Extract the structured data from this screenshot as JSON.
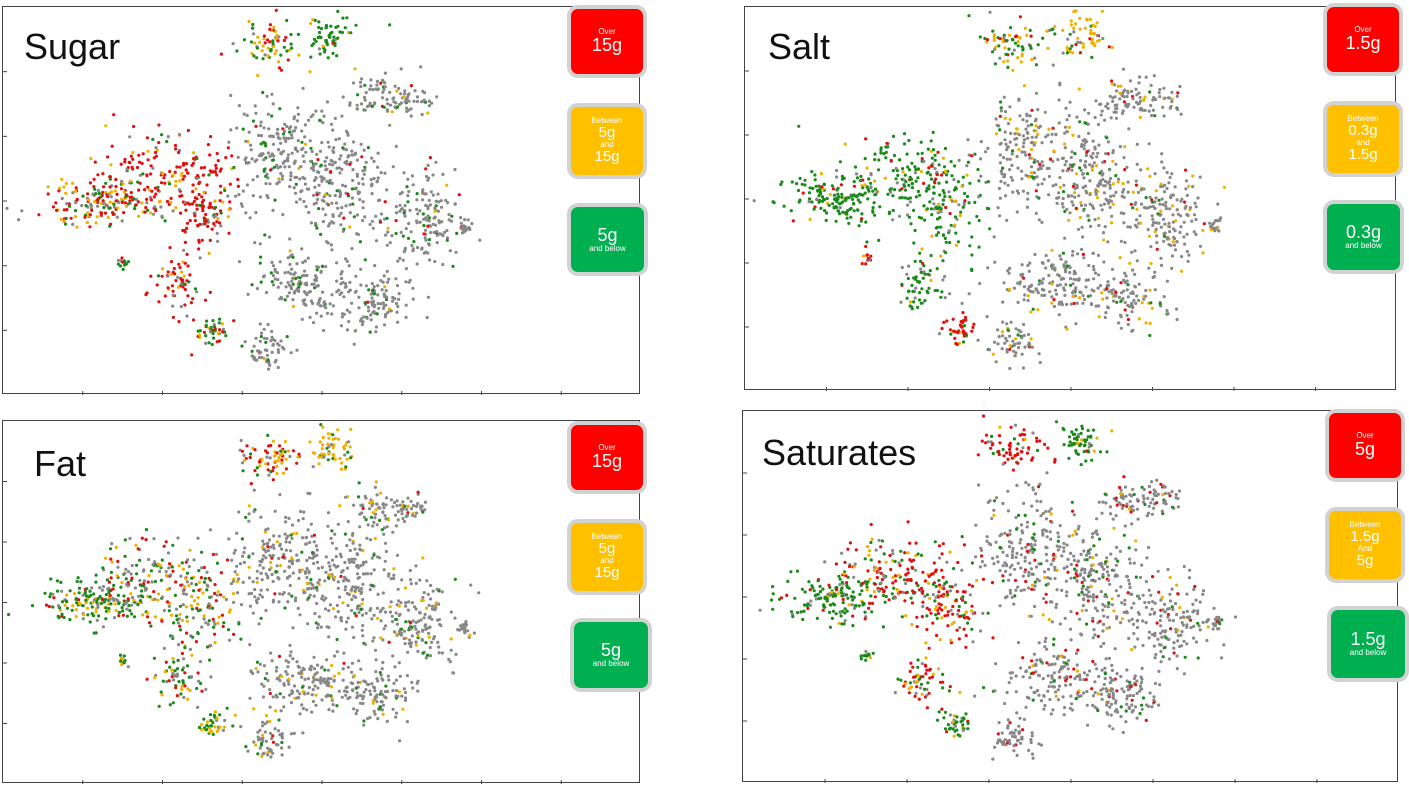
{
  "colors": {
    "red": "#ff0000",
    "amber": "#ffc000",
    "green": "#00b050",
    "dot_gray": "#888888",
    "dot_green": "#1a8a1a",
    "dot_red": "#e01010",
    "dot_amber": "#f0b000",
    "legend_border": "#d2d2d2"
  },
  "chart_data": [
    {
      "type": "scatter",
      "title": "Sugar",
      "point_categories": [
        "gray",
        "green",
        "amber",
        "red"
      ],
      "legend": [
        {
          "level": "high",
          "color": "red",
          "lines": [
            "Over",
            "15g"
          ]
        },
        {
          "level": "medium",
          "color": "amber",
          "lines": [
            "Between",
            "5g",
            "and",
            "15g"
          ]
        },
        {
          "level": "low",
          "color": "green",
          "lines": [
            "5g",
            "and below"
          ]
        }
      ]
    },
    {
      "type": "scatter",
      "title": "Salt",
      "point_categories": [
        "gray",
        "green",
        "amber",
        "red"
      ],
      "legend": [
        {
          "level": "high",
          "color": "red",
          "lines": [
            "Over",
            "1.5g"
          ]
        },
        {
          "level": "medium",
          "color": "amber",
          "lines": [
            "Between",
            "0.3g",
            "and",
            "1.5g"
          ]
        },
        {
          "level": "low",
          "color": "green",
          "lines": [
            "0.3g",
            "and below"
          ]
        }
      ]
    },
    {
      "type": "scatter",
      "title": "Fat",
      "point_categories": [
        "gray",
        "green",
        "amber",
        "red"
      ],
      "legend": [
        {
          "level": "high",
          "color": "red",
          "lines": [
            "Over",
            "15g"
          ]
        },
        {
          "level": "medium",
          "color": "amber",
          "lines": [
            "Between",
            "5g",
            "and",
            "15g"
          ]
        },
        {
          "level": "low",
          "color": "green",
          "lines": [
            "5g",
            "and below"
          ]
        }
      ]
    },
    {
      "type": "scatter",
      "title": "Saturates",
      "point_categories": [
        "gray",
        "green",
        "amber",
        "red"
      ],
      "legend": [
        {
          "level": "high",
          "color": "red",
          "lines": [
            "Over",
            "5g"
          ]
        },
        {
          "level": "medium",
          "color": "amber",
          "lines": [
            "Between",
            "1.5g",
            "And",
            "5g"
          ]
        },
        {
          "level": "low",
          "color": "green",
          "lines": [
            "1.5g",
            "and below"
          ]
        }
      ]
    }
  ]
}
